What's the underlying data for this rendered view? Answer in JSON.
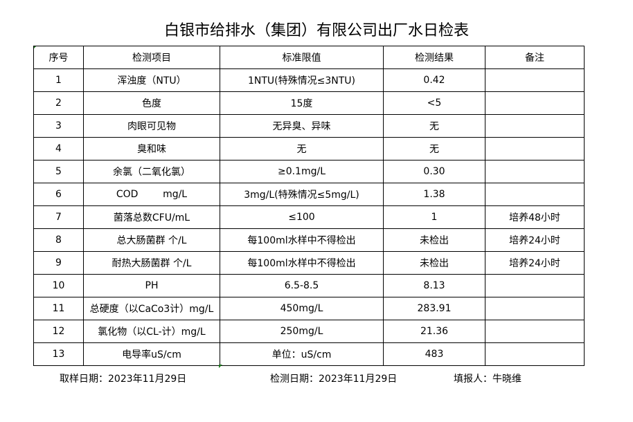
{
  "title": "白银市给排水（集团）有限公司出厂水日检表",
  "headers": [
    "序号",
    "检测项目",
    "标准限值",
    "检测结果",
    "备注"
  ],
  "rows": [
    [
      "1",
      "浑浊度（NTU）",
      "1NTU(特殊情况≤3NTU)",
      "0.42",
      ""
    ],
    [
      "2",
      "色度",
      "15度",
      "<5",
      ""
    ],
    [
      "3",
      "肉眼可见物",
      "无异臭、异味",
      "无",
      ""
    ],
    [
      "4",
      "臭和味",
      "无",
      "无",
      ""
    ],
    [
      "5",
      "余氯（二氧化氯）",
      "≥0.1mg/L",
      "0.30",
      ""
    ],
    [
      "6",
      "COD        mg/L",
      "3mg/L(特殊情况≤5mg/L)",
      "1.38",
      ""
    ],
    [
      "7",
      "菌落总数CFU/mL",
      "≤100",
      "1",
      "培养48小时"
    ],
    [
      "8",
      "总大肠菌群 个/L",
      "每100ml水样中不得检出",
      "未检出",
      "培养24小时"
    ],
    [
      "9",
      "耐热大肠菌群 个/L",
      "每100ml水样中不得检出",
      "未检出",
      "培养24小时"
    ],
    [
      "10",
      "PH",
      "6.5-8.5",
      "8.13",
      ""
    ],
    [
      "11",
      "总硬度（以CaCo3计）mg/L",
      "450mg/L",
      "283.91",
      ""
    ],
    [
      "12",
      "氯化物（以CL-计）mg/L",
      "250mg/L",
      "21.36",
      ""
    ],
    [
      "13",
      "电导率uS/cm",
      "单位：uS/cm",
      "483",
      ""
    ]
  ],
  "footer": {
    "sample_date": "取样日期：2023年11月29日",
    "test_date": "检测日期：2023年11月29日",
    "reporter": "填报人：牛晓维"
  }
}
